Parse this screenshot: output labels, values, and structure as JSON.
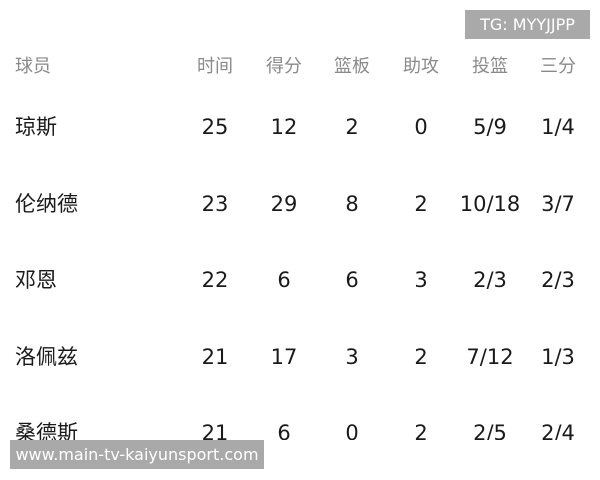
{
  "watermark_top": "TG: MYYJJPP",
  "watermark_bottom": "www.main-tv-kaiyunsport.com",
  "headers": [
    "球员",
    "时间",
    "得分",
    "篮板",
    "助攻",
    "投篮",
    "三分"
  ],
  "rows": [
    [
      "琼斯",
      "25",
      "12",
      "2",
      "0",
      "5/9",
      "1/4"
    ],
    [
      "伦纳德",
      "23",
      "29",
      "8",
      "2",
      "10/18",
      "3/7"
    ],
    [
      "邓恩",
      "22",
      "6",
      "6",
      "3",
      "2/3",
      "2/3"
    ],
    [
      "洛佩兹",
      "21",
      "17",
      "3",
      "2",
      "7/12",
      "1/3"
    ],
    [
      "桑德斯",
      "21",
      "6",
      "0",
      "2",
      "2/5",
      "2/4"
    ]
  ]
}
